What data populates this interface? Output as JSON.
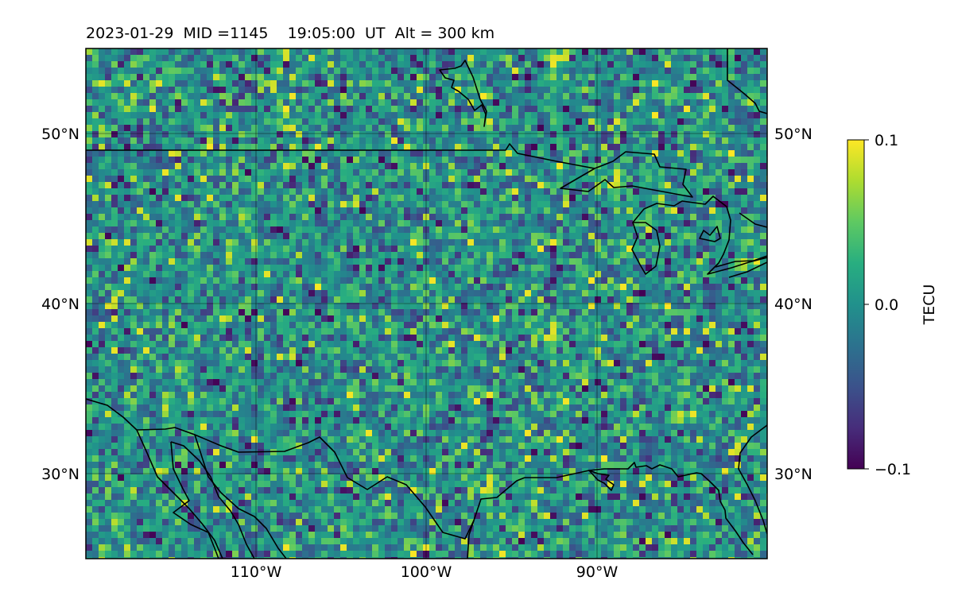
{
  "header": {
    "title": "2023-01-29  MID =1145    19:05:00  UT  Alt = 300 km"
  },
  "map": {
    "lon_range": [
      -120,
      -80
    ],
    "lat_range": [
      25,
      55
    ],
    "lon_ticks": [
      {
        "value": -110,
        "label": "110°W"
      },
      {
        "value": -100,
        "label": "100°W"
      },
      {
        "value": -90,
        "label": "90°W"
      }
    ],
    "lat_ticks": [
      {
        "value": 50,
        "label": "50°N"
      },
      {
        "value": 40,
        "label": "40°N"
      },
      {
        "value": 30,
        "label": "30°N"
      }
    ],
    "grid": true,
    "colormap": "viridis",
    "background_color": "#21918c",
    "coastline_color": "#000000"
  },
  "colorbar": {
    "label": "TECU",
    "min": -0.1,
    "max": 0.1,
    "ticks": [
      {
        "value": 0.1,
        "label": "0.1"
      },
      {
        "value": 0.0,
        "label": "0.0"
      },
      {
        "value": -0.1,
        "label": "−0.1"
      }
    ],
    "placement": "right"
  }
}
